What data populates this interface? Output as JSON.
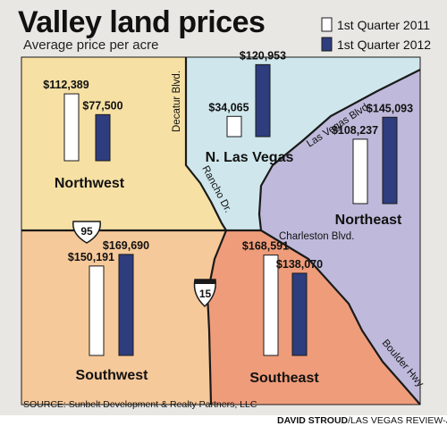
{
  "chart_data": {
    "type": "bar",
    "title": "Valley land prices",
    "subtitle": "Average price per acre",
    "legend_placement": "top-right",
    "series": [
      {
        "name": "1st Quarter 2011",
        "color": "#ffffff"
      },
      {
        "name": "1st Quarter 2012",
        "color": "#2e3d7e"
      }
    ],
    "categories": [
      "Northwest",
      "N. Las Vegas",
      "Northeast",
      "Southwest",
      "Southeast"
    ],
    "regions": [
      {
        "name": "Northwest",
        "values": [
          112389,
          77500
        ],
        "labels": [
          "$112,389",
          "$77,500"
        ],
        "color": "#f6e0a4"
      },
      {
        "name": "N. Las Vegas",
        "values": [
          34065,
          120953
        ],
        "labels": [
          "$34,065",
          "$120,953"
        ],
        "color": "#cfe7ec"
      },
      {
        "name": "Northeast",
        "values": [
          108237,
          145093
        ],
        "labels": [
          "$108,237",
          "$145,093"
        ],
        "color": "#bfbadb"
      },
      {
        "name": "Southwest",
        "values": [
          150191,
          169690
        ],
        "labels": [
          "$150,191",
          "$169,690"
        ],
        "color": "#f6c99a"
      },
      {
        "name": "Southeast",
        "values": [
          168591,
          138070
        ],
        "labels": [
          "$168,591",
          "$138,070"
        ],
        "color": "#ef9c7a"
      }
    ],
    "streets": [
      "Decatur Blvd.",
      "Las Vegas Blvd.",
      "Rancho Dr.",
      "Charleston Blvd.",
      "Boulder Hwy."
    ],
    "highways": [
      "95",
      "15"
    ]
  },
  "source": "SOURCE: Sunbelt Development & Realty Partners, LLC",
  "credit_name": "DAVID STROUD",
  "credit_org": "/LAS VEGAS REVIEW-JOURNAL",
  "colors": {
    "background": "#e9e7e3",
    "bar_2012": "#2e3d7e",
    "bar_2011": "#ffffff",
    "bar_stroke": "#1a1a1a"
  }
}
